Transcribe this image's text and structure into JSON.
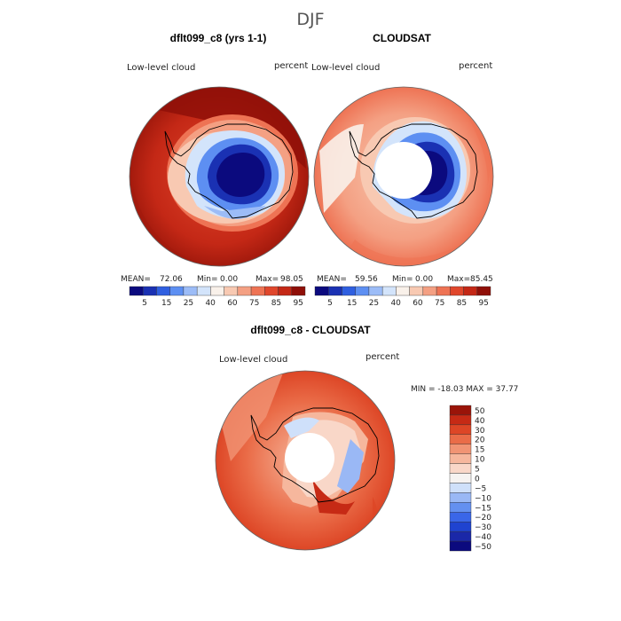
{
  "chart_data": {
    "type": "heatmap",
    "title": "DJF",
    "projection": "south polar stereographic",
    "panels": [
      {
        "title": "dflt099_c8 (yrs 1-1)",
        "variable": "Low-level cloud",
        "units": "percent",
        "stats": {
          "mean_label": "MEAN=",
          "mean": "72.06",
          "min_label": "Min=",
          "min": "0.00",
          "max_label": "Max=",
          "max": "98.05"
        },
        "colorbar_ticks": [
          "5",
          "15",
          "25",
          "40",
          "60",
          "75",
          "85",
          "95"
        ]
      },
      {
        "title": "CLOUDSAT",
        "variable": "Low-level cloud",
        "units": "percent",
        "stats": {
          "mean_label": "MEAN=",
          "mean": "59.56",
          "min_label": "Min=",
          "min": "0.00",
          "max_label": "Max=",
          "max": "85.45"
        },
        "colorbar_ticks": [
          "5",
          "15",
          "25",
          "40",
          "60",
          "75",
          "85",
          "95"
        ]
      },
      {
        "title": "dflt099_c8 - CLOUDSAT",
        "variable": "Low-level cloud",
        "units": "percent",
        "stats_text": "MIN = -18.03 MAX =  37.77",
        "colorbar_ticks": [
          "50",
          "40",
          "30",
          "20",
          "15",
          "10",
          "5",
          "0",
          "−5",
          "−10",
          "−15",
          "−20",
          "−30",
          "−40",
          "−50"
        ]
      }
    ],
    "colors": {
      "abs_scale": [
        "#0b0a7e",
        "#1a31b3",
        "#2f5fe0",
        "#5d8ff2",
        "#9cbcf7",
        "#d3e4fb",
        "#f9f1ea",
        "#f8c9b2",
        "#f4a083",
        "#ee7354",
        "#e0472c",
        "#c42816",
        "#8f0f08"
      ],
      "diff_scale": [
        "#0b0a7e",
        "#1a28a8",
        "#1f43d0",
        "#3a66e8",
        "#6490f0",
        "#9ab8f5",
        "#cfe0fa",
        "#f6f3f1",
        "#f9d7c8",
        "#f6b79d",
        "#f19474",
        "#ea6c48",
        "#dd4626",
        "#c62a15",
        "#9a1409"
      ],
      "continent_outline": "#000000"
    }
  }
}
